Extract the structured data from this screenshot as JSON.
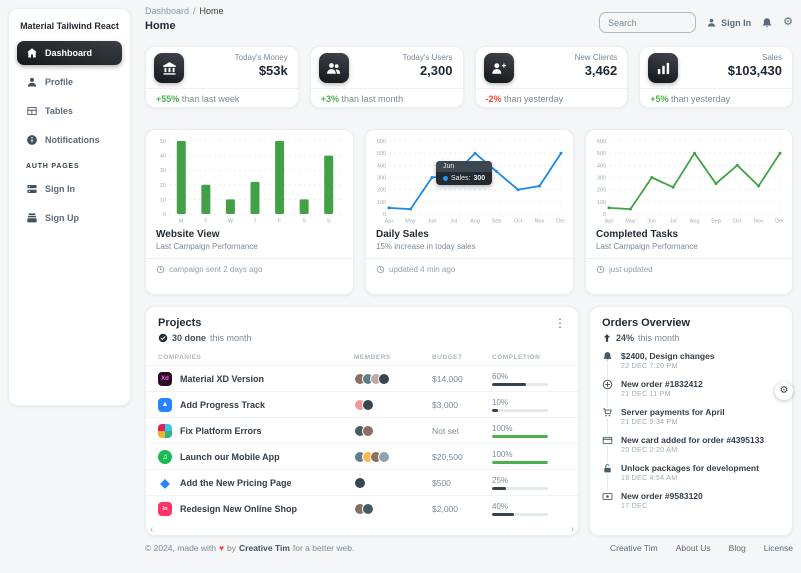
{
  "sidebar": {
    "brand": "Material Tailwind React",
    "items": [
      {
        "label": "Dashboard"
      },
      {
        "label": "Profile"
      },
      {
        "label": "Tables"
      },
      {
        "label": "Notifications"
      }
    ],
    "auth_heading": "AUTH PAGES",
    "auth_items": [
      {
        "label": "Sign In"
      },
      {
        "label": "Sign Up"
      }
    ]
  },
  "topbar": {
    "breadcrumb_root": "Dashboard",
    "breadcrumb_sep": "/",
    "breadcrumb_current": "Home",
    "page_title": "Home",
    "search_placeholder": "Search",
    "sign_in": "Sign In"
  },
  "stats": {
    "cards": [
      {
        "label": "Today's Money",
        "value": "$53k",
        "delta": "+55%",
        "suffix": "than last week"
      },
      {
        "label": "Today's Users",
        "value": "2,300",
        "delta": "+3%",
        "suffix": "than last month"
      },
      {
        "label": "New Clients",
        "value": "3,462",
        "delta": "-2%",
        "suffix": "than yesterday"
      },
      {
        "label": "Sales",
        "value": "$103,430",
        "delta": "+5%",
        "suffix": "than yesterday"
      }
    ]
  },
  "chart_data": [
    {
      "type": "bar",
      "title": "Website View",
      "subtitle": "Last Campaign Performance",
      "footer": "campaign sent 2 days ago",
      "categories": [
        "M",
        "T",
        "W",
        "T",
        "F",
        "S",
        "S"
      ],
      "values": [
        50,
        20,
        10,
        22,
        50,
        10,
        40
      ],
      "ylim": [
        0,
        50
      ],
      "ystep": 10,
      "color": "#43a047"
    },
    {
      "type": "line",
      "title": "Daily Sales",
      "subtitle": "15% increase in today sales",
      "footer": "updated 4 min ago",
      "categories": [
        "Apr",
        "May",
        "Jun",
        "Jul",
        "Aug",
        "Sep",
        "Oct",
        "Nov",
        "Dec"
      ],
      "values": [
        50,
        40,
        300,
        320,
        500,
        350,
        200,
        230,
        500
      ],
      "ylim": [
        0,
        600
      ],
      "ystep": 100,
      "color": "#1e88e5",
      "tooltip": {
        "label": "Jun",
        "series": "Sales:",
        "value": "300"
      }
    },
    {
      "type": "line",
      "title": "Completed Tasks",
      "subtitle": "Last Campaign Performance",
      "footer": "just updated",
      "categories": [
        "Apr",
        "May",
        "Jun",
        "Jul",
        "Aug",
        "Sep",
        "Oct",
        "Nov",
        "Dec"
      ],
      "values": [
        50,
        40,
        300,
        220,
        500,
        250,
        400,
        230,
        500
      ],
      "ylim": [
        0,
        600
      ],
      "ystep": 100,
      "color": "#43a047"
    }
  ],
  "projects": {
    "title": "Projects",
    "done_bold": "30 done",
    "done_rest": "this month",
    "columns": [
      "COMPANIES",
      "MEMBERS",
      "BUDGET",
      "COMPLETION"
    ],
    "rows": [
      {
        "name": "Material XD Version",
        "budget": "$14,000",
        "completion": "60%",
        "pct": 60
      },
      {
        "name": "Add Progress Track",
        "budget": "$3,000",
        "completion": "10%",
        "pct": 10
      },
      {
        "name": "Fix Platform Errors",
        "budget": "Not set",
        "completion": "100%",
        "pct": 100
      },
      {
        "name": "Launch our Mobile App",
        "budget": "$20,500",
        "completion": "100%",
        "pct": 100
      },
      {
        "name": "Add the New Pricing Page",
        "budget": "$500",
        "completion": "25%",
        "pct": 25
      },
      {
        "name": "Redesign New Online Shop",
        "budget": "$2,000",
        "completion": "40%",
        "pct": 40
      }
    ]
  },
  "orders": {
    "title": "Orders Overview",
    "delta_bold": "24%",
    "delta_rest": "this month",
    "items": [
      {
        "title": "$2400, Design changes",
        "date": "22 DEC 7:20 PM"
      },
      {
        "title": "New order #1832412",
        "date": "21 DEC 11 PM"
      },
      {
        "title": "Server payments for April",
        "date": "21 DEC 9:34 PM"
      },
      {
        "title": "New card added for order #4395133",
        "date": "20 DEC 2:20 AM"
      },
      {
        "title": "Unlock packages for development",
        "date": "18 DEC 4:54 AM"
      },
      {
        "title": "New order #9583120",
        "date": "17 DEC"
      }
    ]
  },
  "footer": {
    "copyright_prefix": "© 2024, made with",
    "heart": "♥",
    "copyright_mid": "by",
    "brand": "Creative Tim",
    "copyright_suffix": "for a better web.",
    "links": [
      "Creative Tim",
      "About Us",
      "Blog",
      "License"
    ]
  },
  "colors": {
    "positive": "#4caf50",
    "negative": "#f44336",
    "progress_partial": "#36424d",
    "progress_complete": "#4caf50"
  }
}
